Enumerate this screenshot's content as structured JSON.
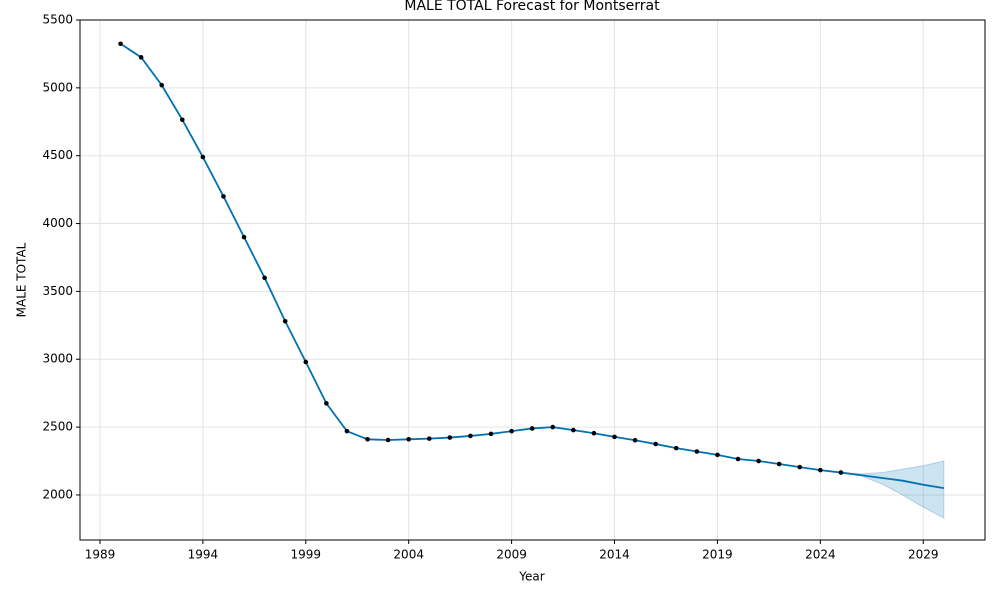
{
  "chart_data": {
    "type": "forecast",
    "title": "MALE TOTAL Forecast for Montserrat",
    "x_label": "Year",
    "y_label": "MALE TOTAL",
    "x": [
      1990,
      1991,
      1992,
      1993,
      1994,
      1995,
      1996,
      1997,
      1998,
      1999,
      2000,
      2001,
      2002,
      2003,
      2004,
      2005,
      2006,
      2007,
      2008,
      2009,
      2010,
      2011,
      2012,
      2013,
      2014,
      2015,
      2016,
      2017,
      2018,
      2019,
      2020,
      2021,
      2022,
      2023,
      2024,
      2025,
      2026,
      2027,
      2028,
      2029,
      2030
    ],
    "actual": [
      5325,
      5225,
      5020,
      4765,
      4490,
      4200,
      3900,
      3600,
      3280,
      2980,
      2675,
      2470,
      2410,
      2405,
      2410,
      2415,
      2423,
      2435,
      2450,
      2470,
      2490,
      2500,
      2478,
      2455,
      2428,
      2403,
      2375,
      2345,
      2320,
      2295,
      2265,
      2250,
      2228,
      2205,
      2183,
      2165,
      null,
      null,
      null,
      null,
      null
    ],
    "forecast": [
      5325,
      5225,
      5020,
      4765,
      4490,
      4200,
      3900,
      3600,
      3280,
      2980,
      2675,
      2470,
      2410,
      2405,
      2410,
      2415,
      2423,
      2435,
      2450,
      2470,
      2490,
      2500,
      2478,
      2455,
      2428,
      2403,
      2375,
      2345,
      2320,
      2295,
      2265,
      2250,
      2228,
      2205,
      2183,
      2165,
      2145,
      2125,
      2105,
      2075,
      2050
    ],
    "lower": [
      null,
      null,
      null,
      null,
      null,
      null,
      null,
      null,
      null,
      null,
      null,
      null,
      null,
      null,
      null,
      null,
      null,
      null,
      null,
      null,
      null,
      null,
      null,
      null,
      null,
      null,
      null,
      null,
      null,
      null,
      null,
      null,
      null,
      null,
      null,
      2165,
      2140,
      2080,
      2000,
      1910,
      1830
    ],
    "upper": [
      null,
      null,
      null,
      null,
      null,
      null,
      null,
      null,
      null,
      null,
      null,
      null,
      null,
      null,
      null,
      null,
      null,
      null,
      null,
      null,
      null,
      null,
      null,
      null,
      null,
      null,
      null,
      null,
      null,
      null,
      null,
      null,
      null,
      null,
      null,
      2165,
      2155,
      2165,
      2190,
      2215,
      2250
    ],
    "line_color": "#0072b2",
    "point_color": "#000000",
    "band_color": "#0072b2",
    "xlim": [
      1988.03,
      2032.0
    ],
    "ylim": [
      1668,
      5500
    ],
    "xticks": [
      1989,
      1994,
      1999,
      2004,
      2009,
      2014,
      2019,
      2024,
      2029
    ],
    "yticks": [
      2000,
      2500,
      3000,
      3500,
      4000,
      4500,
      5000,
      5500
    ],
    "grid": true
  }
}
